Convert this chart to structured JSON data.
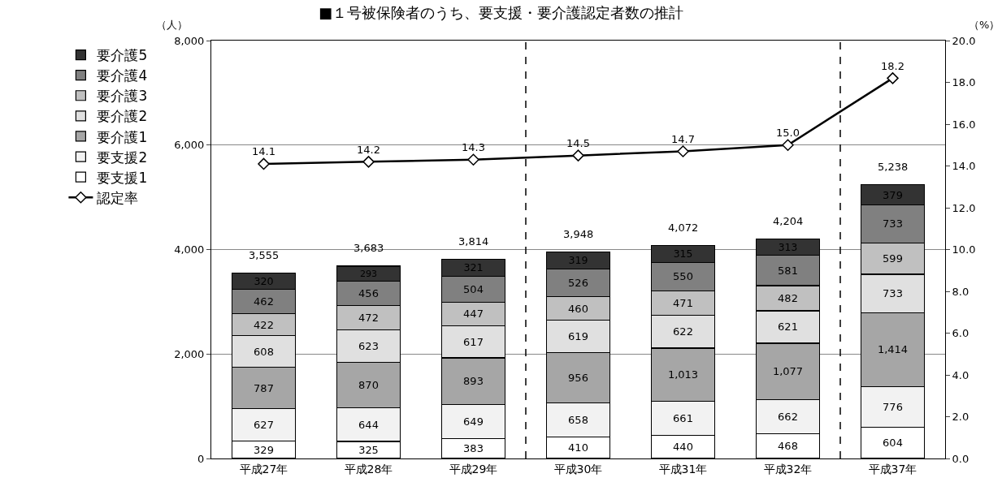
{
  "chart_data": {
    "type": "bar",
    "title": "■１号被保険者のうち、要支援・要介護認定者数の推計",
    "ylabel": "（人）",
    "y2label": "（%）",
    "categories": [
      "平成27年",
      "平成28年",
      "平成29年",
      "平成30年",
      "平成31年",
      "平成32年",
      "平成37年"
    ],
    "stacked": true,
    "series": [
      {
        "name": "要支援1",
        "color": "#ffffff",
        "values": [
          329,
          325,
          383,
          410,
          440,
          468,
          604
        ]
      },
      {
        "name": "要支援2",
        "color": "#f2f2f2",
        "values": [
          627,
          644,
          649,
          658,
          661,
          662,
          776
        ]
      },
      {
        "name": "要介護1",
        "color": "#a6a6a6",
        "values": [
          787,
          870,
          893,
          956,
          1013,
          1077,
          1414
        ],
        "value_labels": [
          "787",
          "870",
          "893",
          "956",
          "1,013",
          "1,077",
          "1,414"
        ]
      },
      {
        "name": "要介護2",
        "color": "#e0e0e0",
        "values": [
          608,
          623,
          617,
          619,
          622,
          621,
          733
        ]
      },
      {
        "name": "要介護3",
        "color": "#c0c0c0",
        "values": [
          422,
          472,
          447,
          460,
          471,
          482,
          599
        ]
      },
      {
        "name": "要介護4",
        "color": "#808080",
        "values": [
          462,
          456,
          504,
          526,
          550,
          581,
          733
        ]
      },
      {
        "name": "要介護5",
        "color": "#333333",
        "values": [
          320,
          293,
          321,
          319,
          315,
          313,
          379
        ]
      },
      {
        "name": "認定率",
        "type": "line",
        "axis": "y2",
        "color": "#000000",
        "marker": "diamond",
        "values": [
          14.1,
          14.2,
          14.3,
          14.5,
          14.7,
          15.0,
          18.2
        ],
        "value_labels": [
          "14.1",
          "14.2",
          "14.3",
          "14.5",
          "14.7",
          "15.0",
          "18.2"
        ]
      }
    ],
    "totals": [
      "3,555",
      "3,683",
      "3,814",
      "3,948",
      "4,072",
      "4,204",
      "5,238"
    ],
    "data_labels": true,
    "ylim": [
      0,
      8000
    ],
    "yticks": [
      {
        "value": 0,
        "label": "0"
      },
      {
        "value": 2000,
        "label": "2,000"
      },
      {
        "value": 4000,
        "label": "4,000"
      },
      {
        "value": 6000,
        "label": "6,000"
      },
      {
        "value": 8000,
        "label": "8,000"
      }
    ],
    "y2lim": [
      0,
      20
    ],
    "y2ticks": [
      {
        "value": 0,
        "label": "0.0"
      },
      {
        "value": 2,
        "label": "2.0"
      },
      {
        "value": 4,
        "label": "4.0"
      },
      {
        "value": 6,
        "label": "6.0"
      },
      {
        "value": 8,
        "label": "8.0"
      },
      {
        "value": 10,
        "label": "10.0"
      },
      {
        "value": 12,
        "label": "12.0"
      },
      {
        "value": 14,
        "label": "14.0"
      },
      {
        "value": 16,
        "label": "16.0"
      },
      {
        "value": 18,
        "label": "18.0"
      },
      {
        "value": 20,
        "label": "20.0"
      }
    ],
    "grid": "y",
    "legend": "left"
  }
}
